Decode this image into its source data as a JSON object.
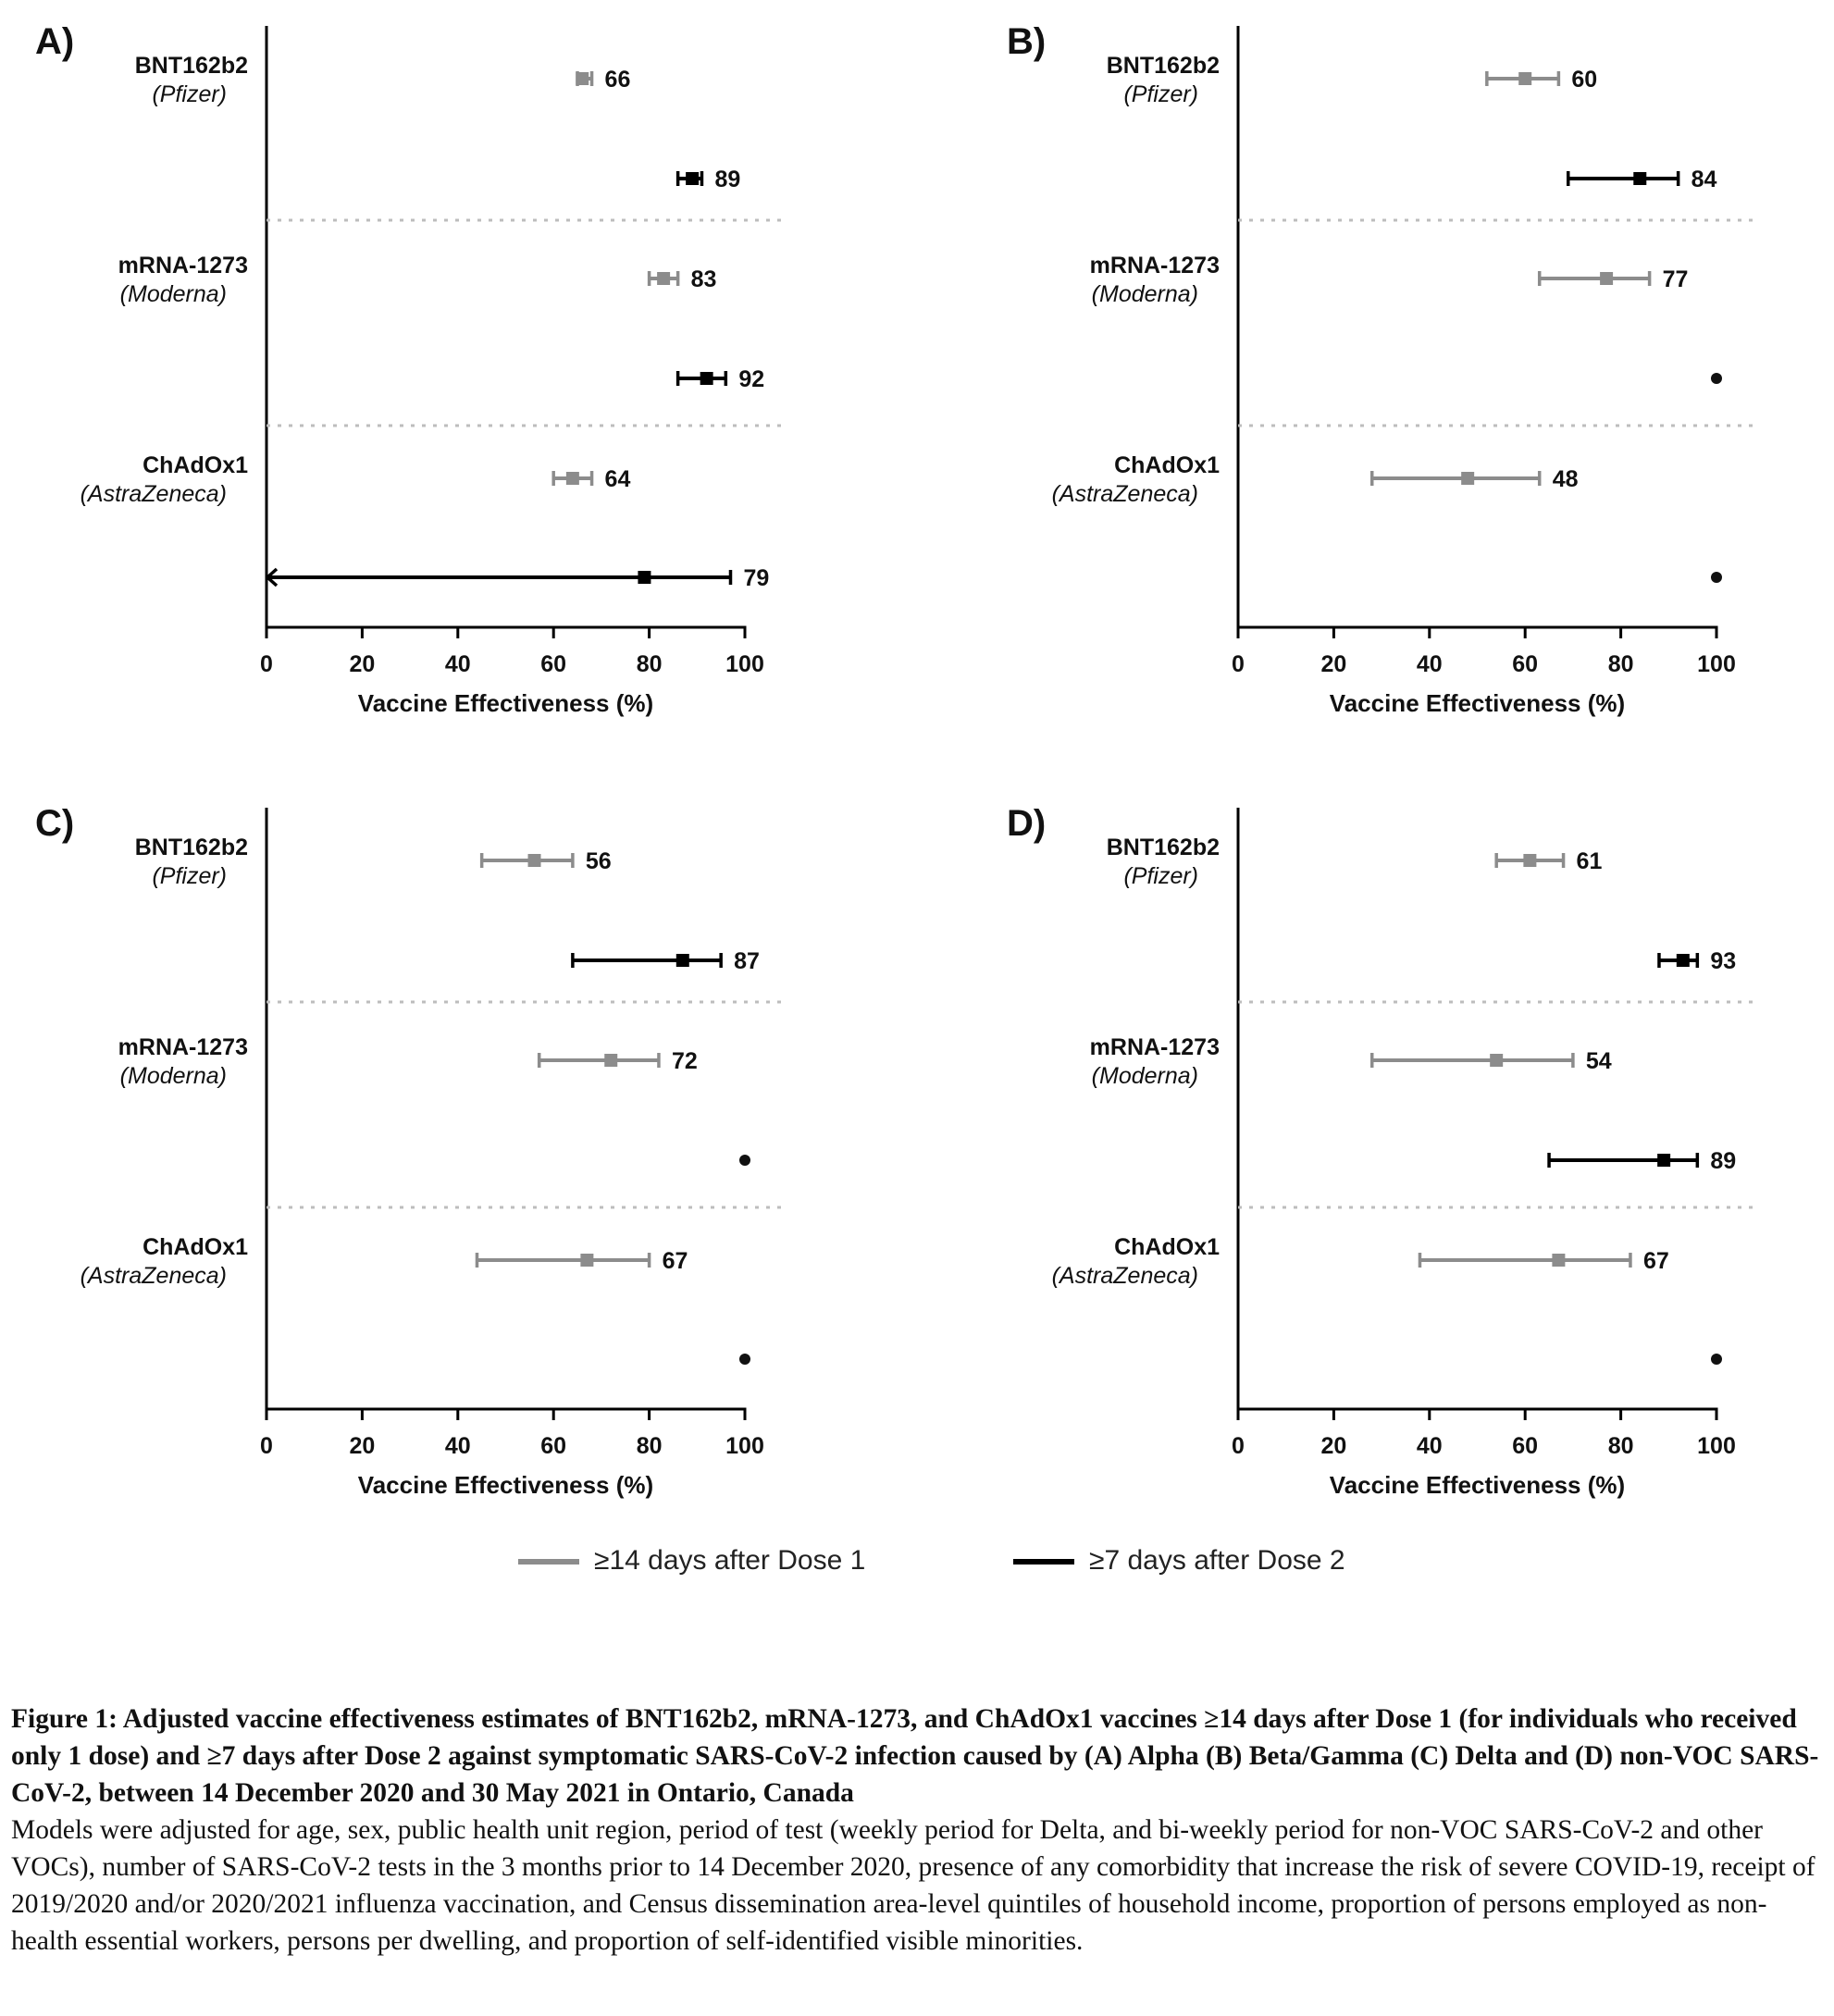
{
  "chart_data": [
    {
      "type": "forest",
      "panel_label": "A)",
      "xlabel": "Vaccine Effectiveness (%)",
      "xlim": [
        0,
        100
      ],
      "xticks": [
        "0",
        "20",
        "40",
        "60",
        "80",
        "100"
      ],
      "groups": [
        {
          "name": "BNT162b2",
          "subname": "(Pfizer)",
          "estimates": [
            {
              "series": 0,
              "value": 66,
              "ci": [
                65,
                68
              ],
              "label": "66"
            },
            {
              "series": 1,
              "value": 89,
              "ci": [
                86,
                91
              ],
              "label": "89"
            }
          ]
        },
        {
          "name": "mRNA-1273",
          "subname": "(Moderna)",
          "estimates": [
            {
              "series": 0,
              "value": 83,
              "ci": [
                80,
                86
              ],
              "label": "83"
            },
            {
              "series": 1,
              "value": 92,
              "ci": [
                86,
                96
              ],
              "label": "92"
            }
          ]
        },
        {
          "name": "ChAdOx1",
          "subname": "(AstraZeneca)",
          "estimates": [
            {
              "series": 0,
              "value": 64,
              "ci": [
                60,
                68
              ],
              "label": "64"
            },
            {
              "series": 1,
              "value": 79,
              "ci": [
                -10,
                97
              ],
              "label": "79"
            }
          ]
        }
      ]
    },
    {
      "type": "forest",
      "panel_label": "B)",
      "xlabel": "Vaccine Effectiveness (%)",
      "xlim": [
        0,
        100
      ],
      "xticks": [
        "0",
        "20",
        "40",
        "60",
        "80",
        "100"
      ],
      "groups": [
        {
          "name": "BNT162b2",
          "subname": "(Pfizer)",
          "estimates": [
            {
              "series": 0,
              "value": 60,
              "ci": [
                52,
                67
              ],
              "label": "60"
            },
            {
              "series": 1,
              "value": 84,
              "ci": [
                69,
                92
              ],
              "label": "84"
            }
          ]
        },
        {
          "name": "mRNA-1273",
          "subname": "(Moderna)",
          "estimates": [
            {
              "series": 0,
              "value": 77,
              "ci": [
                63,
                86
              ],
              "label": "77"
            },
            {
              "series": 1,
              "value": 100,
              "ci": [
                100,
                100
              ],
              "label": ""
            }
          ]
        },
        {
          "name": "ChAdOx1",
          "subname": "(AstraZeneca)",
          "estimates": [
            {
              "series": 0,
              "value": 48,
              "ci": [
                28,
                63
              ],
              "label": "48"
            },
            {
              "series": 1,
              "value": 100,
              "ci": [
                100,
                100
              ],
              "label": ""
            }
          ]
        }
      ]
    },
    {
      "type": "forest",
      "panel_label": "C)",
      "xlabel": "Vaccine Effectiveness (%)",
      "xlim": [
        0,
        100
      ],
      "xticks": [
        "0",
        "20",
        "40",
        "60",
        "80",
        "100"
      ],
      "groups": [
        {
          "name": "BNT162b2",
          "subname": "(Pfizer)",
          "estimates": [
            {
              "series": 0,
              "value": 56,
              "ci": [
                45,
                64
              ],
              "label": "56"
            },
            {
              "series": 1,
              "value": 87,
              "ci": [
                64,
                95
              ],
              "label": "87"
            }
          ]
        },
        {
          "name": "mRNA-1273",
          "subname": "(Moderna)",
          "estimates": [
            {
              "series": 0,
              "value": 72,
              "ci": [
                57,
                82
              ],
              "label": "72"
            },
            {
              "series": 1,
              "value": 100,
              "ci": [
                100,
                100
              ],
              "label": ""
            }
          ]
        },
        {
          "name": "ChAdOx1",
          "subname": "(AstraZeneca)",
          "estimates": [
            {
              "series": 0,
              "value": 67,
              "ci": [
                44,
                80
              ],
              "label": "67"
            },
            {
              "series": 1,
              "value": 100,
              "ci": [
                100,
                100
              ],
              "label": ""
            }
          ]
        }
      ]
    },
    {
      "type": "forest",
      "panel_label": "D)",
      "xlabel": "Vaccine Effectiveness (%)",
      "xlim": [
        0,
        100
      ],
      "xticks": [
        "0",
        "20",
        "40",
        "60",
        "80",
        "100"
      ],
      "groups": [
        {
          "name": "BNT162b2",
          "subname": "(Pfizer)",
          "estimates": [
            {
              "series": 0,
              "value": 61,
              "ci": [
                54,
                68
              ],
              "label": "61"
            },
            {
              "series": 1,
              "value": 93,
              "ci": [
                88,
                96
              ],
              "label": "93"
            }
          ]
        },
        {
          "name": "mRNA-1273",
          "subname": "(Moderna)",
          "estimates": [
            {
              "series": 0,
              "value": 54,
              "ci": [
                28,
                70
              ],
              "label": "54"
            },
            {
              "series": 1,
              "value": 89,
              "ci": [
                65,
                96
              ],
              "label": "89"
            }
          ]
        },
        {
          "name": "ChAdOx1",
          "subname": "(AstraZeneca)",
          "estimates": [
            {
              "series": 0,
              "value": 67,
              "ci": [
                38,
                82
              ],
              "label": "67"
            },
            {
              "series": 1,
              "value": 100,
              "ci": [
                100,
                100
              ],
              "label": ""
            }
          ]
        }
      ]
    }
  ],
  "legend": {
    "placement": "bottom-center",
    "items": [
      {
        "label": "≥14 days after Dose 1",
        "color": "#8c8c8c"
      },
      {
        "label": "≥7 days after Dose 2",
        "color": "#000000"
      }
    ]
  },
  "caption": {
    "title": "Figure 1: Adjusted vaccine effectiveness estimates of BNT162b2, mRNA-1273, and ChAdOx1 vaccines ≥14 days after Dose 1 (for individuals who received only 1 dose) and ≥7 days after Dose 2 against symptomatic SARS-CoV-2 infection caused by (A) Alpha (B) Beta/Gamma (C) Delta and (D) non-VOC SARS-CoV-2, between 14 December 2020 and 30 May 2021 in Ontario, Canada",
    "body": "Models were adjusted for age, sex, public health unit region, period of test (weekly period for Delta, and bi-weekly period for non-VOC SARS-CoV-2 and other VOCs), number of SARS-CoV-2 tests in the 3 months prior to 14 December 2020, presence of any comorbidity that increase the risk of severe COVID-19, receipt of 2019/2020 and/or 2020/2021 influenza vaccination, and Census dissemination area-level quintiles of household income, proportion of persons employed as non-health essential workers, persons per dwelling, and proportion of self-identified visible minorities."
  }
}
